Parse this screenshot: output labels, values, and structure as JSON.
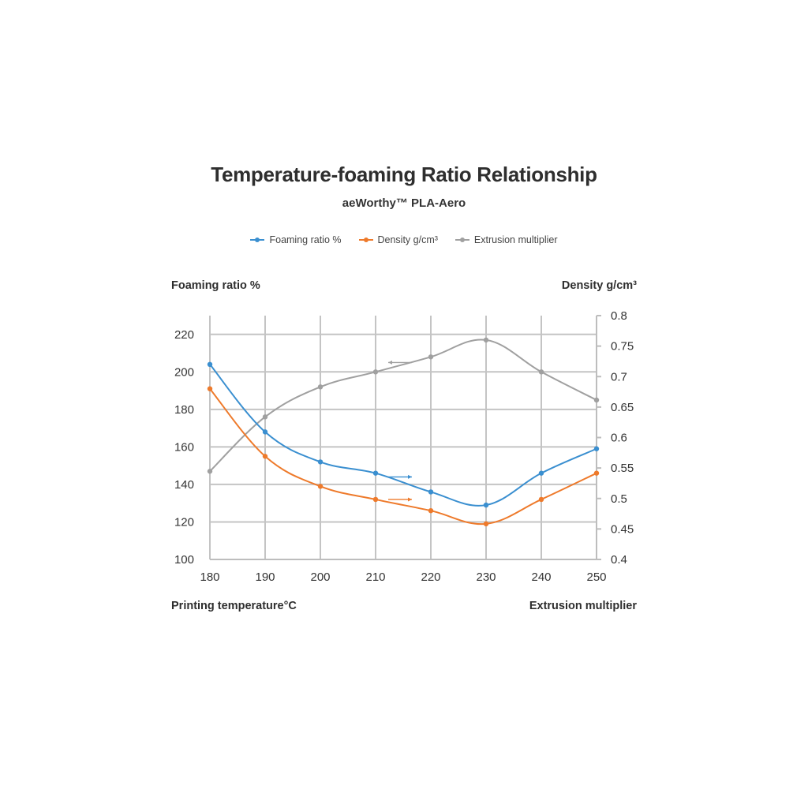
{
  "chart_data": {
    "type": "line",
    "title": "Temperature-foaming Ratio Relationship",
    "subtitle": "aeWorthy™ PLA-Aero",
    "xlabel": "Printing temperature°C",
    "ylabel_left": "Foaming ratio %",
    "ylabel_right": "Density g/cm³",
    "bottom_right_label": "Extrusion multiplier",
    "x": [
      180,
      190,
      200,
      210,
      220,
      230,
      240,
      250
    ],
    "x_ticks": [
      "180",
      "190",
      "200",
      "210",
      "220",
      "230",
      "240",
      "250"
    ],
    "ylim_left": [
      100,
      230
    ],
    "ylim_right": [
      0.4,
      0.8
    ],
    "y_ticks_left": [
      "100",
      "120",
      "140",
      "160",
      "180",
      "200",
      "220"
    ],
    "y_ticks_right": [
      "0.4",
      "0.45",
      "0.5",
      "0.55",
      "0.6",
      "0.65",
      "0.7",
      "0.75",
      "0.8"
    ],
    "grid": true,
    "legend_position": "top-center",
    "series": [
      {
        "name": "Foaming ratio %",
        "axis": "left",
        "color": "#3a8fd0",
        "values": [
          204,
          168,
          152,
          146,
          136,
          129,
          146,
          159
        ]
      },
      {
        "name": "Density g/cm³",
        "axis": "left",
        "color": "#ee7a2b",
        "values": [
          191,
          155,
          139,
          132,
          126,
          119,
          132,
          146
        ]
      },
      {
        "name": "Extrusion multiplier",
        "axis": "left",
        "color": "#a0a0a0",
        "values": [
          147,
          176,
          192,
          200,
          208,
          217,
          200,
          185
        ]
      }
    ],
    "annotations": [
      {
        "series": "Extrusion multiplier",
        "direction": "left",
        "x_from": 210,
        "x_to": 220,
        "y": 205
      },
      {
        "series": "Foaming ratio %",
        "direction": "right",
        "x_from": 210,
        "x_to": 220,
        "y": 144
      },
      {
        "series": "Density g/cm³",
        "direction": "right",
        "x_from": 210,
        "x_to": 220,
        "y": 132
      }
    ]
  }
}
